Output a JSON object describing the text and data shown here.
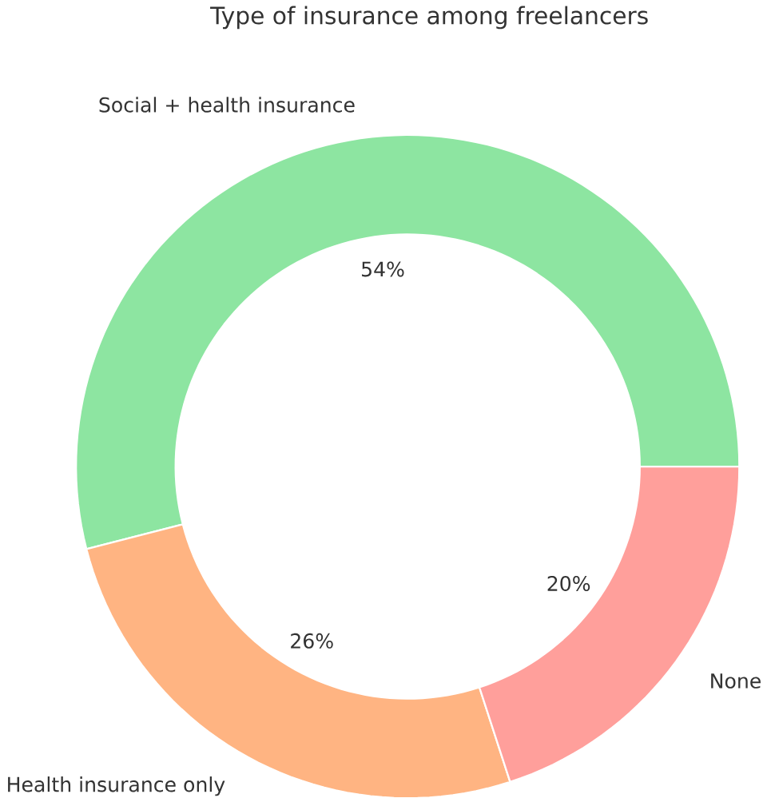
{
  "chart_data": {
    "type": "donut",
    "title": "Type of insurance among freelancers",
    "categories": [
      "Social + health insurance",
      "Health insurance only",
      "None"
    ],
    "values": [
      54,
      26,
      20
    ],
    "value_labels": [
      "54%",
      "26%",
      "20%"
    ],
    "colors": [
      "#8de5a1",
      "#ffb482",
      "#ff9f9b"
    ]
  }
}
